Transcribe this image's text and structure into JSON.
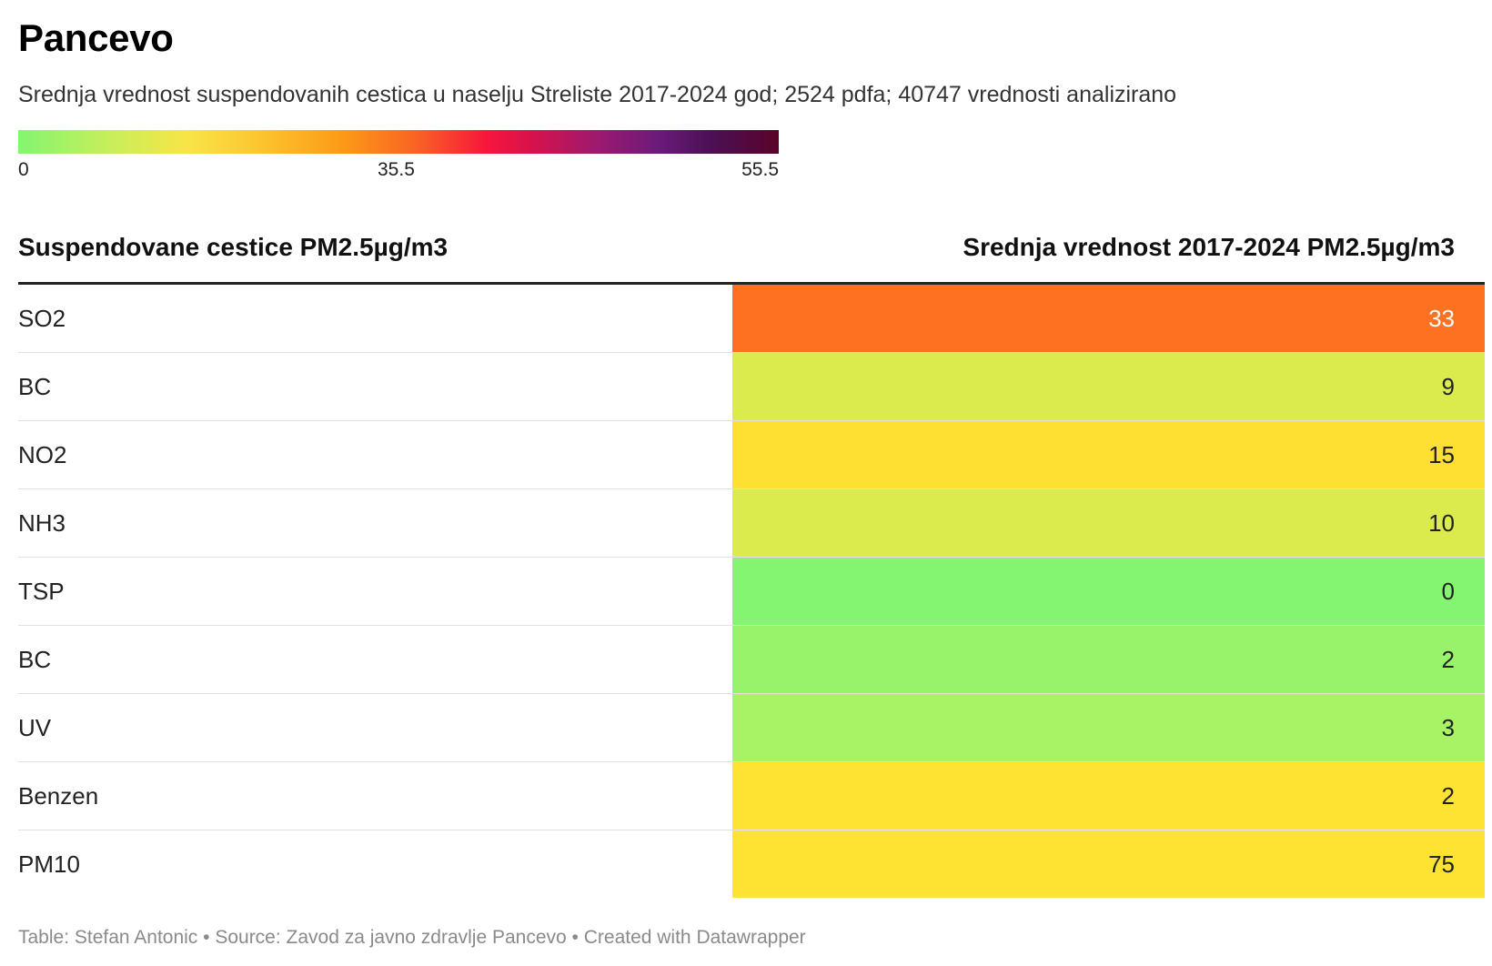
{
  "title": "Pancevo",
  "subtitle": "Srednja vrednost suspendovanih cestica u naselju Streliste 2017-2024 god; 2524 pdfa; 40747 vrednosti analizirano",
  "legend": {
    "ticks": [
      "0",
      "35.5",
      "55.5"
    ],
    "colors": [
      "#84f571",
      "#f8e547",
      "#fc9d17",
      "#f7163c",
      "#6b1b7a",
      "#5a0328"
    ]
  },
  "chart_data": {
    "type": "table",
    "columns": [
      "Suspendovane cestice PM2.5µg/m3",
      "Srednja vrednost 2017-2024 PM2.5µg/m3"
    ],
    "rows": [
      {
        "label": "SO2",
        "value": "33",
        "color": "#fd7120",
        "dark_text": true
      },
      {
        "label": "BC",
        "value": "9",
        "color": "#dbeb4e",
        "dark_text": false
      },
      {
        "label": "NO2",
        "value": "15",
        "color": "#fee032",
        "dark_text": false
      },
      {
        "label": "NH3",
        "value": "10",
        "color": "#dbeb4e",
        "dark_text": false
      },
      {
        "label": "TSP",
        "value": "0",
        "color": "#84f571",
        "dark_text": false
      },
      {
        "label": "BC",
        "value": "2",
        "color": "#98f36b",
        "dark_text": false
      },
      {
        "label": "UV",
        "value": "3",
        "color": "#a7f265",
        "dark_text": false
      },
      {
        "label": "Benzen",
        "value": "2",
        "color": "#fee333",
        "dark_text": false
      },
      {
        "label": "PM10",
        "value": "75",
        "color": "#fee333",
        "dark_text": false
      }
    ]
  },
  "footer": "Table: Stefan Antonic • Source: Zavod za javno zdravlje Pancevo • Created with Datawrapper"
}
